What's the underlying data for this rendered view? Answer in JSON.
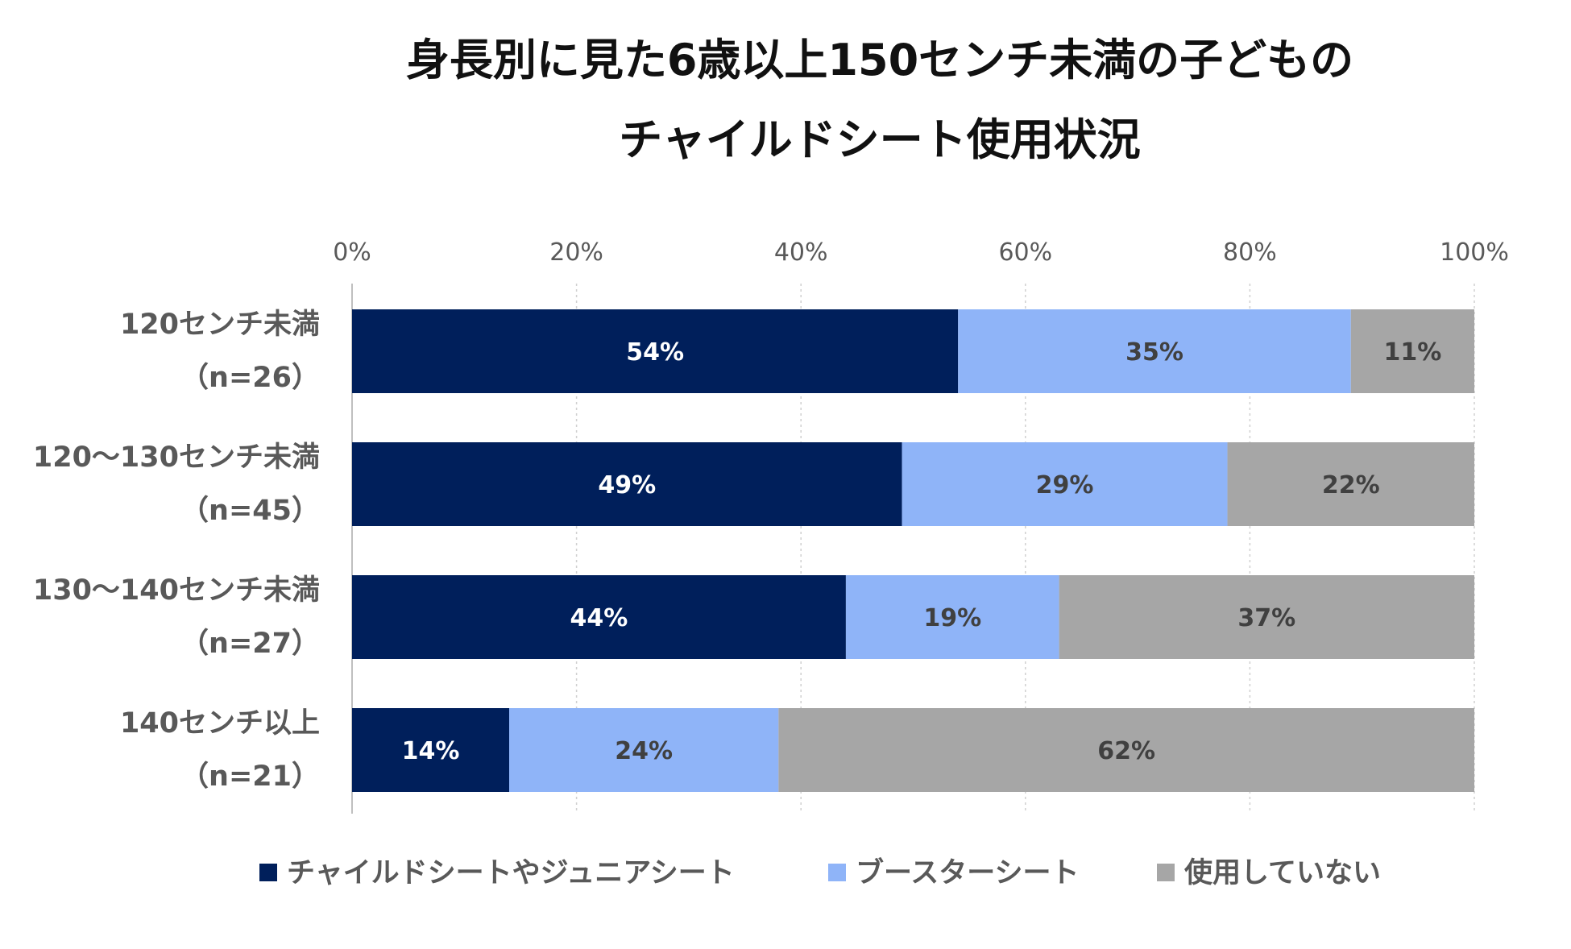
{
  "chart_data": {
    "type": "bar",
    "orientation": "horizontal",
    "stacked": true,
    "title_lines": [
      "身長別に見た6歳以上150センチ未満の子どもの",
      "チャイルドシート使用状況"
    ],
    "x_ticks": [
      "0%",
      "20%",
      "40%",
      "60%",
      "80%",
      "100%"
    ],
    "xlim": [
      0,
      100
    ],
    "grid": true,
    "legend_position": "bottom",
    "categories": [
      {
        "label": "120センチ未満",
        "n": "（n=26）"
      },
      {
        "label": "120～130センチ未満",
        "n": "（n=45）"
      },
      {
        "label": "130～140センチ未満",
        "n": "（n=27）"
      },
      {
        "label": "140センチ以上",
        "n": "（n=21）"
      }
    ],
    "series": [
      {
        "name": "チャイルドシートやジュニアシート",
        "color": "#001f5b",
        "label_color": "#ffffff",
        "values": [
          54,
          49,
          44,
          14
        ],
        "labels": [
          "54%",
          "49%",
          "44%",
          "14%"
        ]
      },
      {
        "name": "ブースターシート",
        "color": "#8fb4f8",
        "label_color": "#404040",
        "values": [
          35,
          29,
          19,
          24
        ],
        "labels": [
          "35%",
          "29%",
          "19%",
          "24%"
        ]
      },
      {
        "name": "使用していない",
        "color": "#a6a6a6",
        "label_color": "#404040",
        "values": [
          11,
          22,
          37,
          62
        ],
        "labels": [
          "11%",
          "22%",
          "37%",
          "62%"
        ]
      }
    ]
  }
}
